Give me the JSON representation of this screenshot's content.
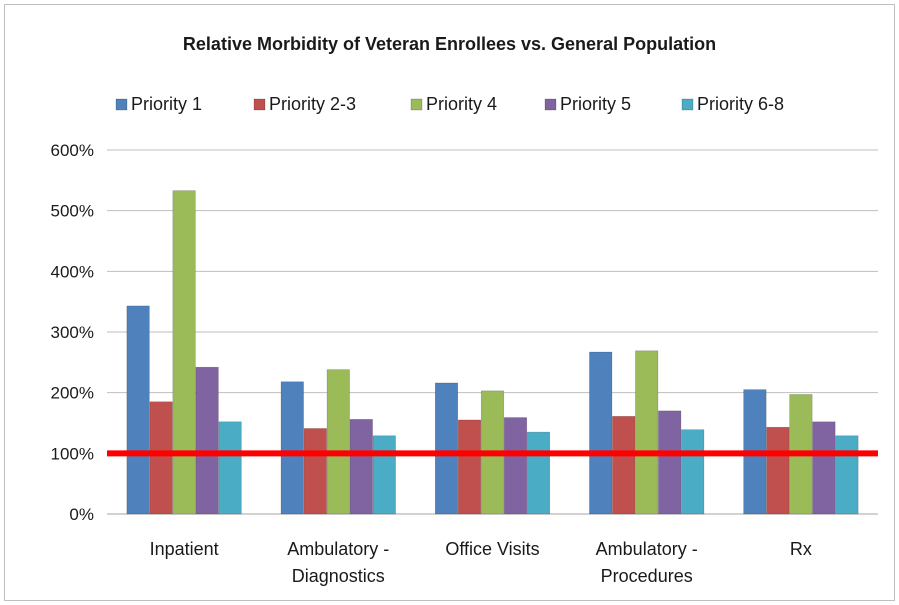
{
  "chart_data": {
    "type": "bar",
    "title": "Relative Morbidity of Veteran Enrollees vs. General Population",
    "xlabel": "",
    "ylabel": "",
    "categories": [
      [
        "Inpatient"
      ],
      [
        "Ambulatory -",
        "Diagnostics"
      ],
      [
        "Office Visits"
      ],
      [
        "Ambulatory -",
        "Procedures"
      ],
      [
        "Rx"
      ]
    ],
    "series": [
      {
        "name": "Priority 1",
        "color": "#4f81bd",
        "values": [
          343,
          218,
          216,
          267,
          205
        ]
      },
      {
        "name": "Priority 2-3",
        "color": "#c0504d",
        "values": [
          185,
          141,
          155,
          161,
          143
        ]
      },
      {
        "name": "Priority 4",
        "color": "#9bbb59",
        "values": [
          533,
          238,
          203,
          269,
          197
        ]
      },
      {
        "name": "Priority 5",
        "color": "#8064a2",
        "values": [
          242,
          156,
          159,
          170,
          152
        ]
      },
      {
        "name": "Priority 6-8",
        "color": "#4bacc6",
        "values": [
          152,
          129,
          135,
          139,
          129
        ]
      }
    ],
    "reference_line": {
      "value": 100,
      "color": "#ff0000"
    },
    "ylim": [
      0,
      600
    ],
    "yticks": [
      0,
      100,
      200,
      300,
      400,
      500,
      600
    ],
    "ytick_labels": [
      "0%",
      "100%",
      "200%",
      "300%",
      "400%",
      "500%",
      "600%"
    ],
    "grid": true,
    "legend_position": "top"
  }
}
